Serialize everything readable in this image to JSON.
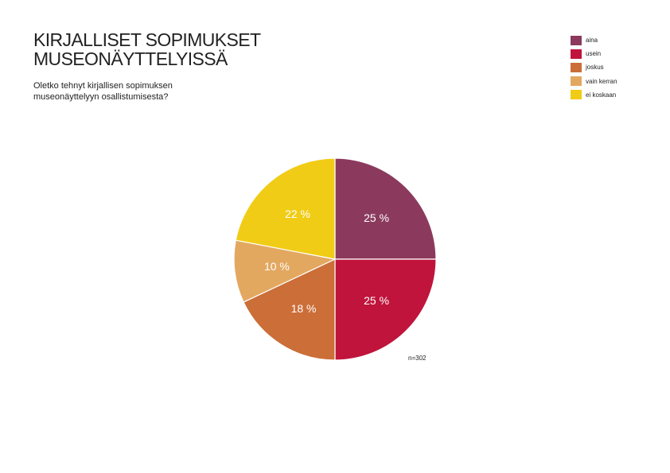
{
  "title_lines": [
    "KIRJALLISET SOPIMUKSET",
    "MUSEONÄYTTELYISSÄ"
  ],
  "subtitle_lines": [
    "Oletko tehnyt kirjallisen sopimuksen",
    "museonäyttelyyn osallistumisesta?"
  ],
  "sample_label": "n=302",
  "chart_data": {
    "type": "pie",
    "title": "KIRJALLISET SOPIMUKSET MUSEONÄYTTELYISSÄ",
    "subtitle": "Oletko tehnyt kirjallisen sopimuksen museonäyttelyyn osallistumisesta?",
    "legend_position": "top-right",
    "unit": "%",
    "slices": [
      {
        "label": "aina",
        "value": 25,
        "data_label": "25 %",
        "color": "#8b3a5e"
      },
      {
        "label": "usein",
        "value": 25,
        "data_label": "25 %",
        "color": "#c0143c"
      },
      {
        "label": "joskus",
        "value": 18,
        "data_label": "18 %",
        "color": "#cb6e38"
      },
      {
        "label": "vain kerran",
        "value": 10,
        "data_label": "10 %",
        "color": "#e3a860"
      },
      {
        "label": "ei koskaan",
        "value": 22,
        "data_label": "22 %",
        "color": "#f0cc16"
      }
    ],
    "annotation": "n=302"
  }
}
